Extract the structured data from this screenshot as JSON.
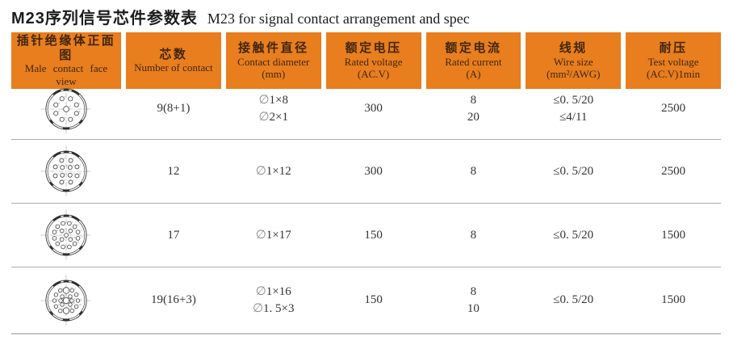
{
  "title": {
    "cn": "M23序列信号芯件参数表",
    "en": "M23 for signal contact arrangement and spec"
  },
  "colors": {
    "header_bg": "#e87e1e",
    "header_text": "#42260b",
    "body_text": "#333333",
    "separator": "#adadad"
  },
  "table": {
    "columns": [
      {
        "cn": "插针绝缘体正面图",
        "en": "Male contact face view",
        "sub": ""
      },
      {
        "cn": "芯数",
        "en": "Number of contact",
        "sub": ""
      },
      {
        "cn": "接触件直径",
        "en": "Contact diameter",
        "sub": "(mm)"
      },
      {
        "cn": "额定电压",
        "en": "Rated voltage",
        "sub": "(AC.V)"
      },
      {
        "cn": "额定电流",
        "en": "Rated current",
        "sub": "(A)"
      },
      {
        "cn": "线规",
        "en": "Wire size",
        "sub": "(mm²/AWG)"
      },
      {
        "cn": "耐压",
        "en": "Test voltage",
        "sub": "(AC.V)1min"
      }
    ],
    "rows": [
      {
        "face_view": "connector-face-9-pin",
        "contacts": "9(8+1)",
        "diameter": [
          "∅1×8",
          "∅2×1"
        ],
        "voltage": [
          "300"
        ],
        "current": [
          "8",
          "20"
        ],
        "wire": [
          "≤0. 5/20",
          "≤4/11"
        ],
        "test": [
          "2500"
        ],
        "face": {
          "rings": [
            {
              "count": 8,
              "radius": 0.55,
              "start": 22.5,
              "size": 0.105
            },
            {
              "count": 1,
              "radius": 0,
              "start": 0,
              "size": 0.135
            }
          ]
        }
      },
      {
        "face_view": "connector-face-12-pin",
        "contacts": "12",
        "diameter": [
          "∅1×12"
        ],
        "voltage": [
          "300"
        ],
        "current": [
          "8"
        ],
        "wire": [
          "≤0. 5/20"
        ],
        "test": [
          "2500"
        ],
        "face": {
          "rings": [
            {
              "count": 8,
              "radius": 0.58,
              "start": 22.5,
              "size": 0.1
            },
            {
              "count": 4,
              "radius": 0.27,
              "start": 45,
              "size": 0.1
            }
          ]
        }
      },
      {
        "face_view": "connector-face-17-pin",
        "contacts": "17",
        "diameter": [
          "∅1×17"
        ],
        "voltage": [
          "150"
        ],
        "current": [
          "8"
        ],
        "wire": [
          "≤0. 5/20"
        ],
        "test": [
          "1500"
        ],
        "face": {
          "rings": [
            {
              "count": 12,
              "radius": 0.6,
              "start": 15,
              "size": 0.095
            },
            {
              "count": 4,
              "radius": 0.3,
              "start": 45,
              "size": 0.095
            },
            {
              "count": 1,
              "radius": 0,
              "start": 0,
              "size": 0.095
            }
          ]
        }
      },
      {
        "face_view": "connector-face-19-pin",
        "contacts": "19(16+3)",
        "diameter": [
          "∅1×16",
          "∅1. 5×3"
        ],
        "voltage": [
          "150"
        ],
        "current": [
          "8",
          "10"
        ],
        "wire": [
          "≤0. 5/20"
        ],
        "test": [
          "1500"
        ],
        "face": {
          "rings": [
            {
              "count": 12,
              "radius": 0.58,
              "start": 0,
              "size": 0.09,
              "skip": [
                90,
                270
              ]
            },
            {
              "count": 8,
              "radius": 0.28,
              "start": 0,
              "size": 0.09,
              "skip": [
                90,
                270
              ]
            },
            {
              "count": 2,
              "radius": 0.5,
              "start": 90,
              "size": 0.15
            },
            {
              "count": 1,
              "radius": 0,
              "start": 0,
              "size": 0.15
            }
          ]
        }
      }
    ]
  }
}
